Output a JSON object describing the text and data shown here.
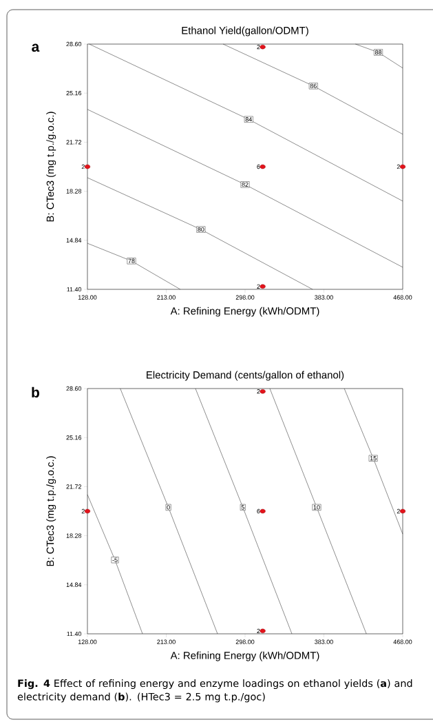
{
  "chart_data": [
    {
      "type": "line",
      "title": "Ethanol Yield(gallon/ODMT)",
      "xlabel": "A: Refining Energy (kWh/ODMT)",
      "ylabel": "B: CTec3 (mg t.p./g.o.c.)",
      "xlim": [
        128,
        468
      ],
      "ylim": [
        11.4,
        28.6
      ],
      "xticks": [
        {
          "value": 128,
          "label": "128.00"
        },
        {
          "value": 213,
          "label": "213.00"
        },
        {
          "value": 298,
          "label": "298.00"
        },
        {
          "value": 383,
          "label": "383.00"
        },
        {
          "value": 468,
          "label": "468.00"
        }
      ],
      "yticks": [
        {
          "value": 11.4,
          "label": "11.40"
        },
        {
          "value": 14.84,
          "label": "14.84"
        },
        {
          "value": 18.28,
          "label": "18.28"
        },
        {
          "value": 21.72,
          "label": "21.72"
        },
        {
          "value": 25.16,
          "label": "25.16"
        },
        {
          "value": 28.6,
          "label": "28.60"
        }
      ],
      "annotations": [
        "a",
        {
          "text": "2",
          "x": 317,
          "y": 28.4
        },
        {
          "text": "2",
          "x": 128,
          "y": 20
        },
        {
          "text": "6",
          "x": 317,
          "y": 20
        },
        {
          "text": "2",
          "x": 468,
          "y": 20
        },
        {
          "text": "2",
          "x": 317,
          "y": 11.6
        }
      ],
      "series": [
        {
          "name": "78",
          "type": "line",
          "marker": "none",
          "color": "#1a1a1a",
          "x": [
            128,
            175.5,
            228.1
          ],
          "values": [
            14.63,
            13.39,
            11.4
          ]
        },
        {
          "name": "80",
          "type": "line",
          "marker": "none",
          "color": "#1a1a1a",
          "x": [
            128,
            250.4,
            370.8
          ],
          "values": [
            19.23,
            15.6,
            11.4
          ]
        },
        {
          "name": "82",
          "type": "line",
          "marker": "none",
          "color": "#1a1a1a",
          "x": [
            128,
            298,
            468
          ],
          "values": [
            24.02,
            18.75,
            12.95
          ]
        },
        {
          "name": "84",
          "type": "line",
          "marker": "none",
          "color": "#1a1a1a",
          "x": [
            130,
            301.9,
            468
          ],
          "values": [
            28.6,
            23.32,
            17.59
          ]
        },
        {
          "name": "86",
          "type": "line",
          "marker": "none",
          "color": "#1a1a1a",
          "x": [
            274.3,
            371.7,
            468
          ],
          "values": [
            28.6,
            25.66,
            22.28
          ]
        },
        {
          "name": "88",
          "type": "line",
          "marker": "none",
          "color": "#1a1a1a",
          "x": [
            417,
            441.7,
            468
          ],
          "values": [
            28.6,
            28.02,
            26.92
          ]
        },
        {
          "type": "scatter",
          "marker": "circle",
          "color": "#e3131b",
          "x": [
            317,
            128,
            317,
            468,
            317
          ],
          "values": [
            28.4,
            20,
            20,
            20,
            11.6
          ]
        }
      ]
    },
    {
      "type": "line",
      "title": "Electricity Demand (cents/gallon of ethanol)",
      "xlabel": "A: Refining Energy (kWh/ODMT)",
      "ylabel": "B: CTec3 (mg t.p./g.o.c.)",
      "xlim": [
        128,
        468
      ],
      "ylim": [
        11.4,
        28.6
      ],
      "xticks": [
        {
          "value": 128,
          "label": "128.00"
        },
        {
          "value": 213,
          "label": "213.00"
        },
        {
          "value": 298,
          "label": "298.00"
        },
        {
          "value": 383,
          "label": "383.00"
        },
        {
          "value": 468,
          "label": "468.00"
        }
      ],
      "yticks": [
        {
          "value": 11.4,
          "label": "11.40"
        },
        {
          "value": 14.84,
          "label": "14.84"
        },
        {
          "value": 18.28,
          "label": "18.28"
        },
        {
          "value": 21.72,
          "label": "21.72"
        },
        {
          "value": 25.16,
          "label": "25.16"
        },
        {
          "value": 28.6,
          "label": "28.60"
        }
      ],
      "annotations": [
        "b",
        {
          "text": "2",
          "x": 317,
          "y": 28.4
        },
        {
          "text": "2",
          "x": 128,
          "y": 20
        },
        {
          "text": "6",
          "x": 317,
          "y": 20
        },
        {
          "text": "2",
          "x": 468,
          "y": 20
        },
        {
          "text": "2",
          "x": 317,
          "y": 11.6
        },
        "**Fig. 4** Effect of refining energy and enzyme loadings on ethanol yields (**a**) and electricity demand (**b**). (HTec3 = 2.5 mg t.p./goc)"
      ],
      "series": [
        {
          "name": "-5",
          "type": "line",
          "marker": "none",
          "color": "#1a1a1a",
          "x": [
            128,
            157.7,
            187.4
          ],
          "values": [
            21.16,
            16.58,
            11.4
          ]
        },
        {
          "name": "0",
          "type": "line",
          "marker": "none",
          "color": "#1a1a1a",
          "x": [
            163.4,
            215.3,
            268.3
          ],
          "values": [
            28.6,
            20.27,
            11.4
          ]
        },
        {
          "name": "5",
          "type": "line",
          "marker": "none",
          "color": "#1a1a1a",
          "x": [
            244.5,
            295.6,
            348.5
          ],
          "values": [
            28.6,
            20.27,
            11.4
          ]
        },
        {
          "name": "10",
          "type": "line",
          "marker": "none",
          "color": "#1a1a1a",
          "x": [
            324.7,
            375.2,
            428.8
          ],
          "values": [
            28.6,
            20.27,
            11.4
          ]
        },
        {
          "name": "15",
          "type": "line",
          "marker": "none",
          "color": "#1a1a1a",
          "x": [
            405,
            436.2,
            468
          ],
          "values": [
            28.6,
            23.71,
            18.4
          ]
        },
        {
          "type": "scatter",
          "marker": "circle",
          "color": "#e3131b",
          "x": [
            317,
            128,
            317,
            468,
            317
          ],
          "values": [
            28.4,
            20,
            20,
            20,
            11.6
          ]
        }
      ]
    }
  ]
}
